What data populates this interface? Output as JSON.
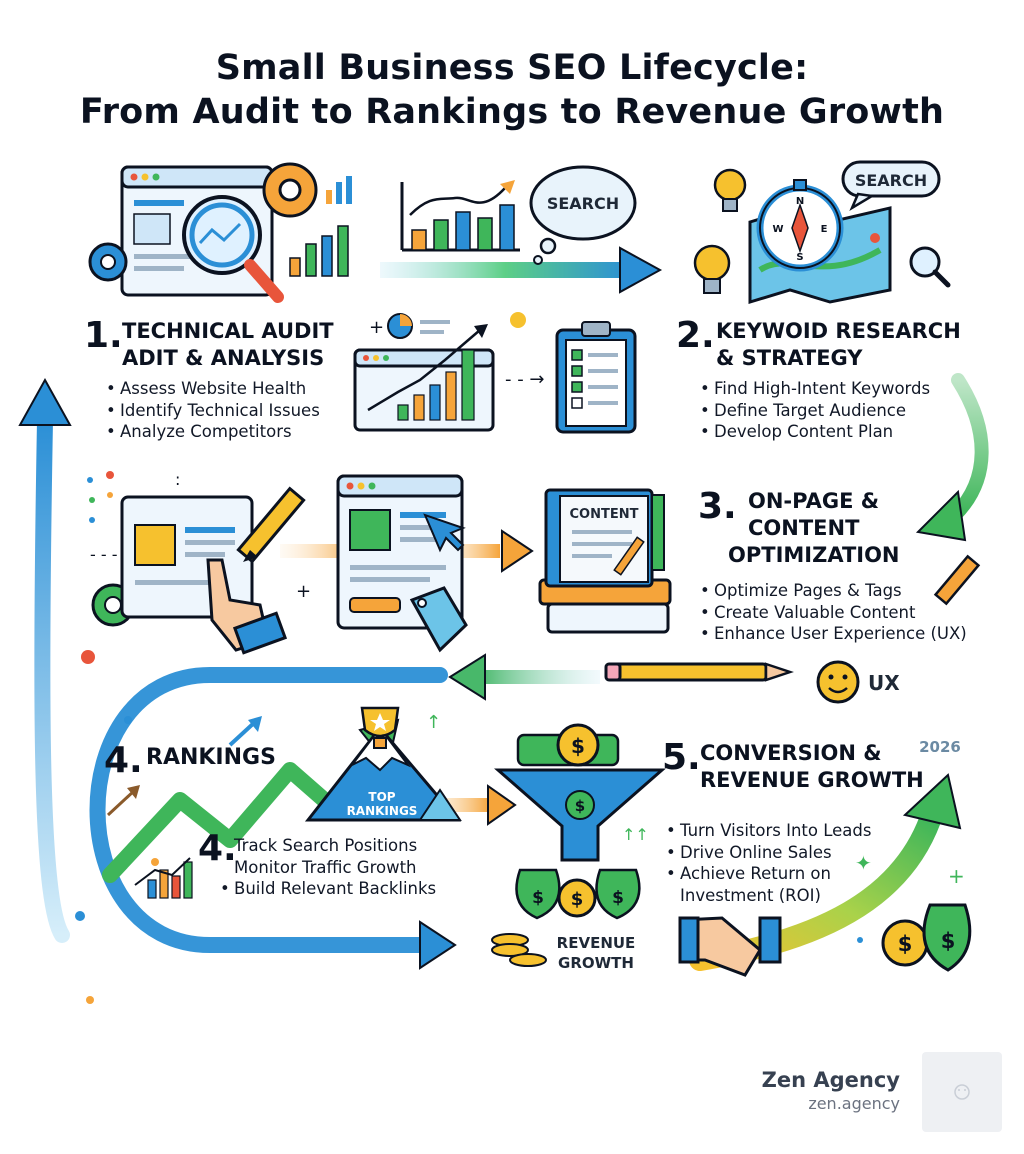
{
  "title": {
    "line1": "Small Business SEO Lifecycle:",
    "line2": "From Audit to Rankings to Revenue Growth"
  },
  "steps": [
    {
      "number": "1.",
      "heading": [
        "TECHNICAL AUDIT",
        "ADIT & ANALYSIS"
      ],
      "bullets": [
        "Assess Website Health",
        "Identify Technical Issues",
        "Analyze Competitors"
      ]
    },
    {
      "number": "2.",
      "heading": [
        "KEYWOID RESEARCH",
        "& STRATEGY"
      ],
      "bullets": [
        "Find High-Intent Keywords",
        "Define Target Audience",
        "Develop Content Plan"
      ]
    },
    {
      "number": "3.",
      "heading": [
        "ON-PAGE &",
        "CONTENT",
        "OPTIMIZATION"
      ],
      "bullets": [
        "Optimize Pages & Tags",
        "Create Valuable Content",
        "Enhance User Experience (UX)"
      ]
    },
    {
      "number": "4.",
      "heading": [
        "RANKINGS"
      ],
      "sub_number": "4.",
      "bullets": [
        "Track Search Positions",
        "Monitor Traffic Growth",
        "Build Relevant Backlinks"
      ]
    },
    {
      "number": "5.",
      "heading": [
        "CONVERSION &",
        "REVENUE GROWTH"
      ],
      "bullets": [
        "Turn Visitors Into Leads",
        "Drive Online Sales",
        "Achieve Return on",
        "Investment (ROI)"
      ]
    }
  ],
  "labels": {
    "search_1": "SEARCH",
    "search_2": "SEARCH",
    "content_book": "CONTENT",
    "ux": "UX",
    "top_rankings_1": "TOP",
    "top_rankings_2": "RANKINGS",
    "revenue_1": "REVENUE",
    "revenue_2": "GROWTH",
    "year": "2026",
    "compass_n": "N",
    "compass_e": "E",
    "compass_w": "W",
    "compass_s": "S",
    "dollar": "$"
  },
  "footer": {
    "brand": "Zen Agency",
    "url": "zen.agency"
  },
  "colors": {
    "ink": "#0b1220",
    "blue": "#2b8fd6",
    "green": "#3fb65a",
    "orange": "#f5a43a",
    "yellow": "#f6c12e",
    "red": "#e8553b"
  },
  "icons": [
    "magnifier-icon",
    "gear-icon",
    "bar-chart-icon",
    "speech-bubble-icon",
    "compass-icon",
    "map-icon",
    "lightbulb-icon",
    "clipboard-checklist-icon",
    "pie-chart-icon",
    "browser-window-icon",
    "pointing-hand-icon",
    "pencil-icon",
    "price-tag-icon",
    "book-stack-icon",
    "smiley-icon",
    "trophy-icon",
    "mountain-icon",
    "trend-arrow-icon",
    "dollar-coin-icon",
    "funnel-icon",
    "money-bag-icon",
    "handshake-icon",
    "cursor-icon"
  ]
}
